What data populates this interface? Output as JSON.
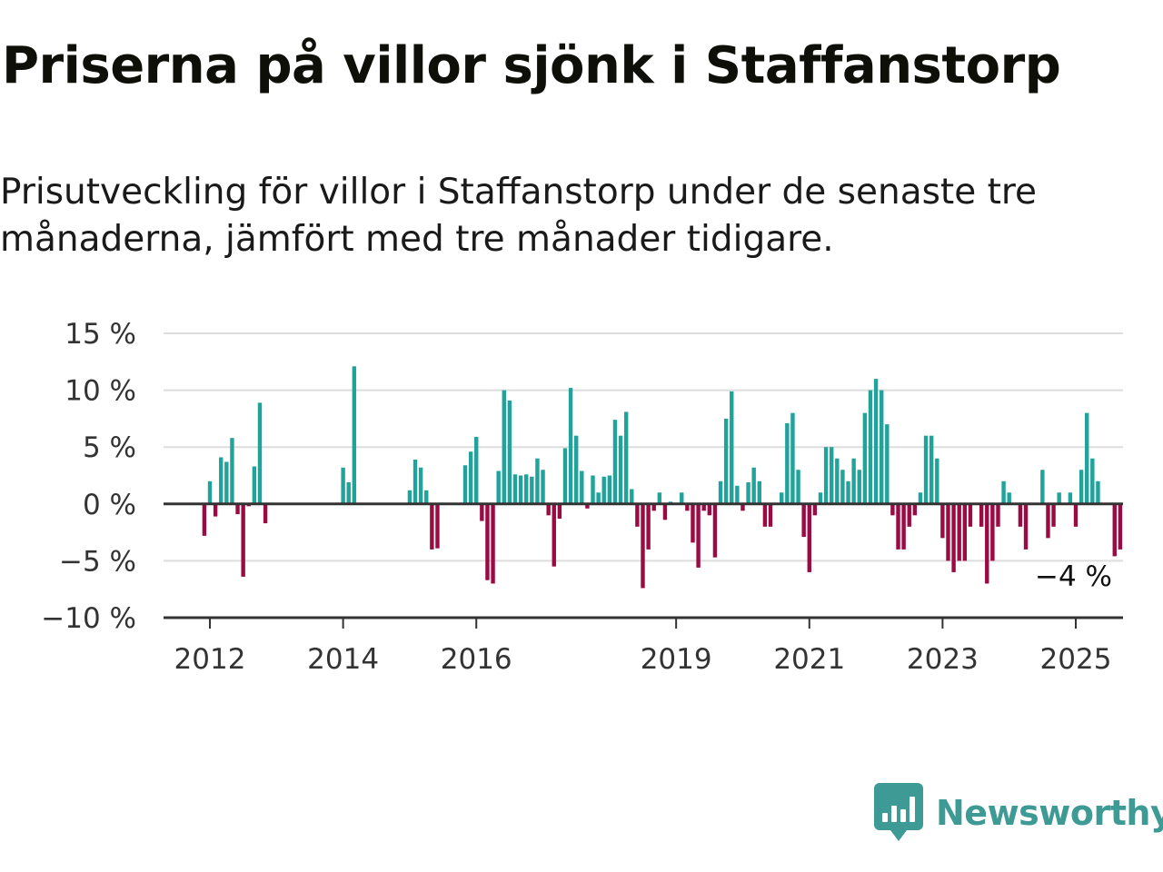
{
  "header": {
    "title": "Priserna på villor sjönk i Staffanstorp",
    "subtitle_line1": "Prisutveckling för villor i Staffanstorp under de senaste tre",
    "subtitle_line2": "månaderna, jämfört med tre månader tidigare."
  },
  "brand": {
    "name": "Newsworthy",
    "icon": "newsworthy-logo-icon",
    "color": "#3d9a94"
  },
  "chart_data": {
    "type": "bar",
    "title": "Priserna på villor sjönk i Staffanstorp",
    "subtitle": "Prisutveckling för villor i Staffanstorp under de senaste tre månaderna, jämfört med tre månader tidigare.",
    "xlabel": "",
    "ylabel": "",
    "ylim": [
      -10,
      15
    ],
    "y_ticks": [
      15,
      10,
      5,
      0,
      -5,
      -10
    ],
    "y_tick_labels": [
      "15 %",
      "10 %",
      "5 %",
      "0 %",
      "−5 %",
      "−10 %"
    ],
    "x_tick_labels": [
      "2012",
      "2014",
      "2016",
      "2019",
      "2021",
      "2023",
      "2025"
    ],
    "x_tick_years": [
      2012,
      2014,
      2016,
      2019,
      2021,
      2023,
      2025
    ],
    "x_start": "2011-12",
    "frequency": "monthly",
    "grid": true,
    "colors": {
      "positive": "#1fa39a",
      "negative": "#9b0a42",
      "grid": "#dddddd",
      "zero_line": "#333333"
    },
    "annotation": {
      "label": "−4 %",
      "value": -4
    },
    "values": [
      -2.8,
      2.0,
      -1.1,
      4.1,
      3.7,
      5.8,
      -0.9,
      -6.4,
      -0.2,
      3.3,
      8.9,
      -1.7,
      0,
      0,
      0,
      0,
      0,
      0,
      0,
      0,
      0,
      0,
      0,
      0,
      0,
      3.2,
      1.9,
      12.1,
      0,
      0,
      0,
      0,
      0,
      0,
      0,
      0,
      0,
      1.2,
      3.9,
      3.2,
      1.2,
      -4.0,
      -3.9,
      0,
      0,
      0,
      0,
      3.4,
      4.6,
      5.9,
      -1.5,
      -6.7,
      -7.0,
      2.9,
      10.0,
      9.1,
      2.6,
      2.5,
      2.6,
      2.4,
      4.0,
      3.0,
      -1.0,
      -5.5,
      -1.3,
      4.9,
      10.2,
      6.0,
      2.9,
      -0.4,
      2.5,
      1.0,
      2.4,
      2.5,
      7.4,
      6.0,
      8.1,
      1.3,
      -2.0,
      -7.4,
      -4.0,
      -0.6,
      1.0,
      -1.4,
      0.2,
      0,
      1.0,
      -0.6,
      -3.4,
      -5.6,
      -0.6,
      -1.0,
      -4.7,
      2.0,
      7.5,
      9.9,
      1.6,
      -0.6,
      1.9,
      3.2,
      2.0,
      -2.0,
      -2.0,
      0,
      1.0,
      7.1,
      8.0,
      3.0,
      -2.9,
      -6.0,
      -1.0,
      1.0,
      5.0,
      5.0,
      4.0,
      3.0,
      2.0,
      4.0,
      3.0,
      8.0,
      10.0,
      11.0,
      10.0,
      7.0,
      -1.0,
      -4.0,
      -4.0,
      -2.0,
      -1.0,
      1.0,
      6.0,
      6.0,
      4.0,
      -3.0,
      -5.0,
      -6.0,
      -5.0,
      -5.0,
      -2.0,
      0,
      -2.0,
      -7.0,
      -5.0,
      -2.0,
      2.0,
      1.0,
      0,
      -2.0,
      -4.0,
      0,
      0,
      3.0,
      -3.0,
      -2.0,
      1.0,
      0,
      1.0,
      -2.0,
      3.0,
      8.0,
      4.0,
      2.0,
      0,
      0,
      -4.6,
      -4.0
    ]
  }
}
